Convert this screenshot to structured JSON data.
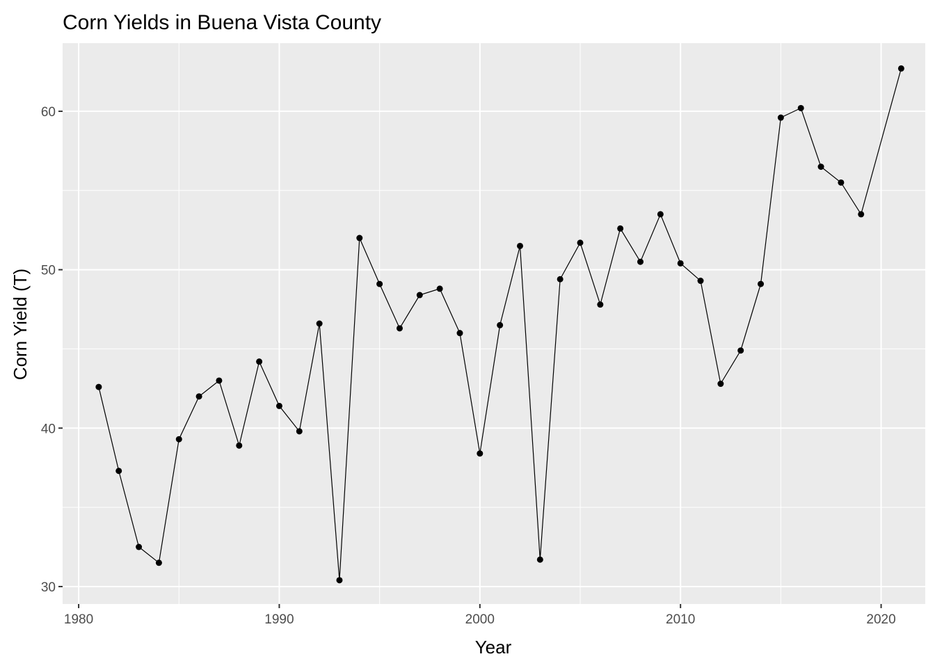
{
  "chart_data": {
    "type": "line",
    "title": "Corn Yields in Buena Vista County",
    "xlabel": "Year",
    "ylabel": "Corn Yield (T)",
    "xlim": [
      1979.2,
      1022.2
    ],
    "ylim": [
      28.9,
      64.3
    ],
    "x_ticks": [
      1980,
      1990,
      2000,
      2010,
      2020
    ],
    "y_ticks": [
      30,
      40,
      50,
      60
    ],
    "grid": true,
    "legend": "none",
    "colors": {
      "panel_bg": "#EBEBEB",
      "grid": "#FFFFFF",
      "line": "#000000",
      "point": "#000000",
      "tick_text": "#4D4D4D"
    },
    "series": [
      {
        "x": [
          1981,
          1982,
          1983,
          1984,
          1985,
          1986,
          1987,
          1988,
          1989,
          1990,
          1991,
          1992,
          1993,
          1994,
          1995,
          1996,
          1997,
          1998,
          1999,
          2000,
          2001,
          2002,
          2003,
          2004,
          2005,
          2006,
          2007,
          2008,
          2009,
          2010,
          2011,
          2012,
          2013,
          2014,
          2015,
          2016,
          2017,
          2018,
          2019,
          2021
        ],
        "y": [
          42.6,
          37.3,
          32.5,
          31.5,
          39.3,
          42.0,
          43.0,
          38.9,
          44.2,
          41.4,
          39.8,
          46.6,
          30.4,
          52.0,
          49.1,
          46.3,
          48.4,
          48.8,
          46.0,
          38.4,
          46.5,
          51.5,
          31.7,
          49.4,
          51.7,
          47.8,
          52.6,
          50.5,
          53.5,
          50.4,
          49.3,
          42.8,
          44.9,
          49.1,
          59.6,
          60.2,
          56.5,
          55.5,
          53.5,
          62.7
        ]
      }
    ]
  }
}
